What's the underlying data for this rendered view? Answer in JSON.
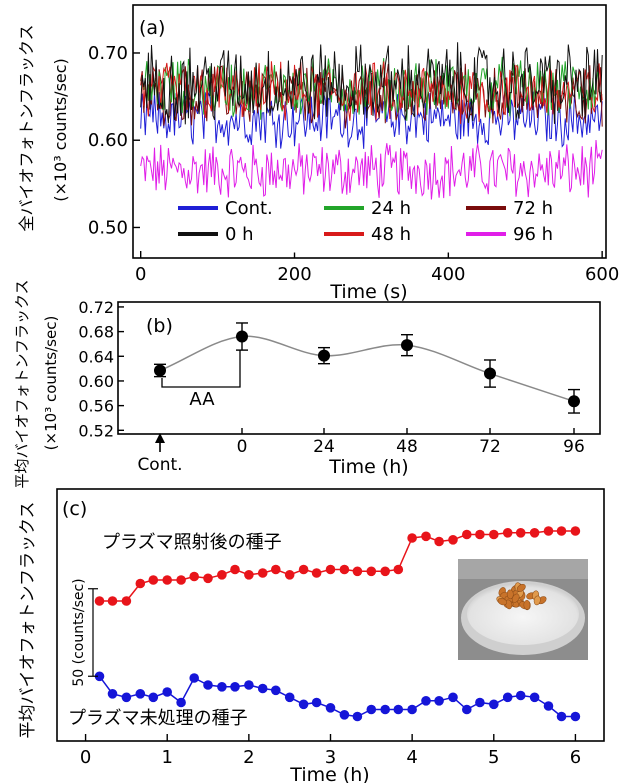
{
  "chart_data": [
    {
      "panel": "(a)",
      "type": "line",
      "xlabel": "Time (s)",
      "ylabel": "全バイオフォトンフラックス",
      "ylabel_unit": "(×10³ counts/sec)",
      "xlim": [
        -10,
        605
      ],
      "ylim": [
        0.465,
        0.755
      ],
      "xticks": [
        0,
        200,
        400,
        600
      ],
      "yticks": [
        0.5,
        0.6,
        0.7
      ],
      "ytick_labels": [
        "0.50",
        "0.60",
        "0.70"
      ],
      "x_step_s": 2,
      "series": [
        {
          "name": "Cont.",
          "color": "#1f1fd6",
          "mean": 0.625,
          "spread": 0.028
        },
        {
          "name": "0 h",
          "color": "#111111",
          "mean": 0.665,
          "spread": 0.04
        },
        {
          "name": "24 h",
          "color": "#22a52a",
          "mean": 0.66,
          "spread": 0.03
        },
        {
          "name": "48 h",
          "color": "#d81a1a",
          "mean": 0.655,
          "spread": 0.03
        },
        {
          "name": "72 h",
          "color": "#7a0c0c",
          "mean": 0.652,
          "spread": 0.03
        },
        {
          "name": "96 h",
          "color": "#e01ee8",
          "mean": 0.565,
          "spread": 0.028
        }
      ],
      "legend_order": [
        "Cont.",
        "24 h",
        "72 h",
        "0 h",
        "48 h",
        "96 h"
      ],
      "legend_position": "bottom"
    },
    {
      "panel": "(b)",
      "type": "scatter",
      "xlabel": "Time (h)",
      "ylabel": "平均バイオフォトンフラックス",
      "ylabel_unit": "(×10³ counts/sec)",
      "categories": [
        "Cont.",
        "0",
        "24",
        "48",
        "72",
        "96"
      ],
      "values": [
        0.617,
        0.672,
        0.641,
        0.658,
        0.612,
        0.567
      ],
      "errors": [
        0.01,
        0.022,
        0.013,
        0.017,
        0.022,
        0.019
      ],
      "ylim": [
        0.514,
        0.728
      ],
      "yticks": [
        0.52,
        0.56,
        0.6,
        0.64,
        0.68,
        0.72
      ],
      "ytick_labels": [
        "0.52",
        "0.56",
        "0.60",
        "0.64",
        "0.68",
        "0.72"
      ],
      "bracket_label": "AA",
      "arrow_under": "Cont."
    },
    {
      "panel": "(c)",
      "type": "line",
      "xlabel": "Time (h)",
      "ylabel": "平均バイオフォトンフラックス",
      "xlim": [
        -0.35,
        6.35
      ],
      "xticks": [
        0,
        1,
        2,
        3,
        4,
        5,
        6
      ],
      "scale_bar_label": "50 (counts/sec)",
      "scale_bar_units": 50,
      "ylim": [
        -112,
        32
      ],
      "series": [
        {
          "name": "プラズマ照射後の種子",
          "color": "#e8141a",
          "x": [
            0.17,
            0.33,
            0.5,
            0.67,
            0.83,
            1.0,
            1.17,
            1.33,
            1.5,
            1.67,
            1.83,
            2.0,
            2.17,
            2.33,
            2.5,
            2.67,
            2.83,
            3.0,
            3.17,
            3.33,
            3.5,
            3.67,
            3.83,
            4.0,
            4.17,
            4.33,
            4.5,
            4.67,
            4.83,
            5.0,
            5.17,
            5.33,
            5.5,
            5.67,
            5.83,
            6.0
          ],
          "values": [
            -32,
            -32,
            -32,
            -22,
            -20,
            -20,
            -20,
            -18,
            -19,
            -17,
            -14,
            -17,
            -16,
            -14,
            -17,
            -14,
            -16,
            -14,
            -14,
            -15,
            -15,
            -15,
            -14,
            4,
            5,
            2,
            3,
            6,
            6,
            6,
            7,
            7,
            7,
            8,
            8,
            8
          ]
        },
        {
          "name": "プラズマ未処理の種子",
          "color": "#1515d8",
          "x": [
            0.17,
            0.33,
            0.5,
            0.67,
            0.83,
            1.0,
            1.17,
            1.33,
            1.5,
            1.67,
            1.83,
            2.0,
            2.17,
            2.33,
            2.5,
            2.67,
            2.83,
            3.0,
            3.17,
            3.33,
            3.5,
            3.67,
            3.83,
            4.0,
            4.17,
            4.33,
            4.5,
            4.67,
            4.83,
            5.0,
            5.17,
            5.33,
            5.5,
            5.67,
            5.83,
            6.0
          ],
          "values": [
            -75,
            -85,
            -87,
            -85,
            -87,
            -84,
            -90,
            -76,
            -80,
            -81,
            -81,
            -80,
            -82,
            -83,
            -87,
            -91,
            -90,
            -93,
            -97,
            -98,
            -94,
            -94,
            -94,
            -94,
            -89,
            -89,
            -87,
            -94,
            -90,
            -91,
            -87,
            -86,
            -87,
            -92,
            -98,
            -98
          ]
        }
      ],
      "inset": "photo-of-seeds-in-dish"
    }
  ]
}
